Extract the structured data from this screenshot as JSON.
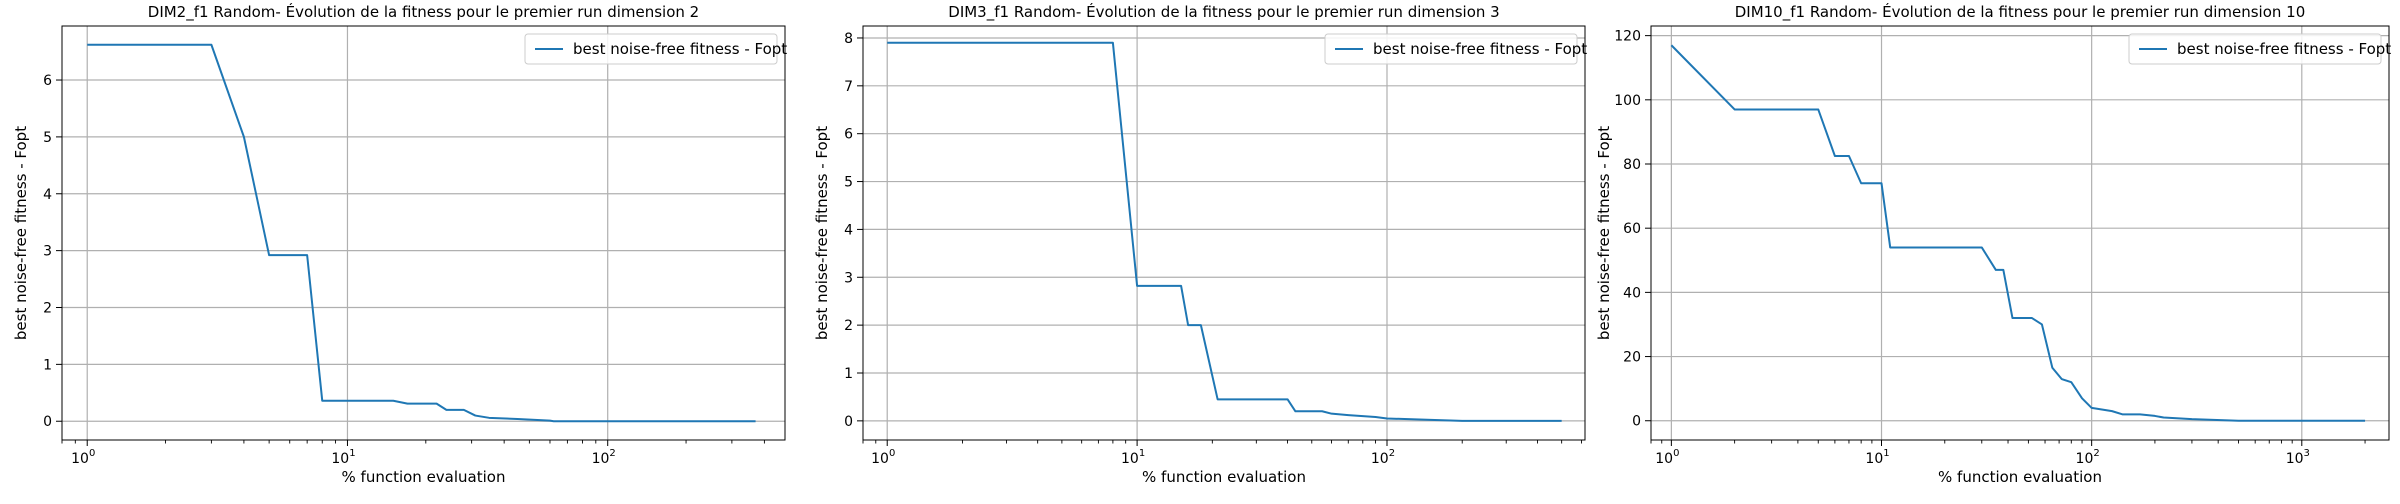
{
  "line_color": "#1f77b4",
  "chart_data": [
    {
      "type": "line",
      "title": "DIM2_f1 Random- Évolution de la fitness pour le premier run dimension 2",
      "xlabel": "% function evaluation",
      "ylabel": "best noise-free fitness - Fopt",
      "xscale": "log",
      "xlim": [
        0.8,
        480
      ],
      "ylim": [
        -0.33,
        6.95
      ],
      "xticks": [
        1,
        10,
        100
      ],
      "xtick_labels": [
        {
          "base": "10",
          "exp": "0"
        },
        {
          "base": "10",
          "exp": "1"
        },
        {
          "base": "10",
          "exp": "2"
        }
      ],
      "yticks": [
        0,
        1,
        2,
        3,
        4,
        5,
        6
      ],
      "ytick_labels": [
        "0",
        "1",
        "2",
        "3",
        "4",
        "5",
        "6"
      ],
      "grid": true,
      "legend_position": "top-right",
      "series": [
        {
          "name": "best noise-free fitness - Fopt",
          "x": [
            1,
            3,
            4,
            5,
            7,
            8,
            15,
            17,
            22,
            24,
            28,
            31,
            35,
            45,
            60,
            62,
            100,
            200,
            370
          ],
          "y": [
            6.62,
            6.62,
            5.0,
            2.92,
            2.92,
            0.36,
            0.36,
            0.31,
            0.31,
            0.2,
            0.2,
            0.1,
            0.06,
            0.04,
            0.01,
            0.0,
            0.0,
            0.0,
            0.0
          ]
        }
      ]
    },
    {
      "type": "line",
      "title": "DIM3_f1 Random- Évolution de la fitness pour le premier run dimension 3",
      "xlabel": "% function evaluation",
      "ylabel": "best noise-free fitness - Fopt",
      "xscale": "log",
      "xlim": [
        0.8,
        620
      ],
      "ylim": [
        -0.4,
        8.25
      ],
      "xticks": [
        1,
        10,
        100
      ],
      "xtick_labels": [
        {
          "base": "10",
          "exp": "0"
        },
        {
          "base": "10",
          "exp": "1"
        },
        {
          "base": "10",
          "exp": "2"
        }
      ],
      "yticks": [
        0,
        1,
        2,
        3,
        4,
        5,
        6,
        7,
        8
      ],
      "ytick_labels": [
        "0",
        "1",
        "2",
        "3",
        "4",
        "5",
        "6",
        "7",
        "8"
      ],
      "grid": true,
      "legend_position": "top-right",
      "series": [
        {
          "name": "best noise-free fitness - Fopt",
          "x": [
            1,
            8,
            10,
            15,
            16,
            18,
            21,
            40,
            43,
            55,
            60,
            70,
            90,
            100,
            150,
            200,
            500
          ],
          "y": [
            7.9,
            7.9,
            2.82,
            2.82,
            2.0,
            2.0,
            0.45,
            0.45,
            0.2,
            0.2,
            0.15,
            0.12,
            0.08,
            0.05,
            0.02,
            0.0,
            0.0
          ]
        }
      ]
    },
    {
      "type": "line",
      "title": "DIM10_f1 Random- Évolution de la fitness pour le premier run dimension 10",
      "xlabel": "% function evaluation",
      "ylabel": "best noise-free fitness - Fopt",
      "xscale": "log",
      "xlim": [
        0.8,
        2600
      ],
      "ylim": [
        -6,
        123
      ],
      "xticks": [
        1,
        10,
        100,
        1000
      ],
      "xtick_labels": [
        {
          "base": "10",
          "exp": "0"
        },
        {
          "base": "10",
          "exp": "1"
        },
        {
          "base": "10",
          "exp": "2"
        },
        {
          "base": "10",
          "exp": "3"
        }
      ],
      "yticks": [
        0,
        20,
        40,
        60,
        80,
        100,
        120
      ],
      "ytick_labels": [
        "0",
        "20",
        "40",
        "60",
        "80",
        "100",
        "120"
      ],
      "grid": true,
      "legend_position": "top-right",
      "series": [
        {
          "name": "best noise-free fitness - Fopt",
          "x": [
            1,
            2,
            5,
            6,
            7,
            8,
            10,
            11,
            30,
            35,
            38,
            42,
            52,
            58,
            65,
            72,
            80,
            90,
            100,
            125,
            140,
            170,
            200,
            220,
            300,
            500,
            2000
          ],
          "y": [
            117,
            97,
            97,
            82.5,
            82.5,
            74,
            74,
            54,
            54,
            47,
            47,
            32,
            32,
            30,
            16.5,
            13,
            12,
            7,
            4,
            3,
            2,
            2,
            1.5,
            1,
            0.5,
            0,
            0
          ]
        }
      ]
    }
  ]
}
